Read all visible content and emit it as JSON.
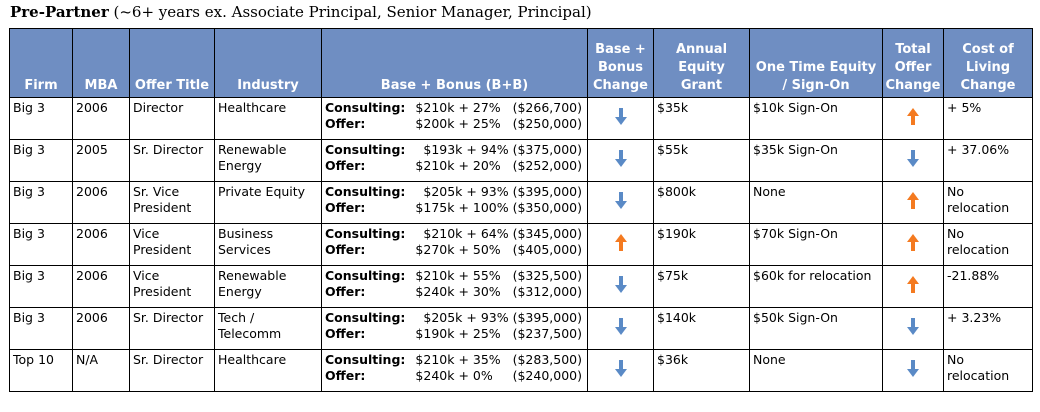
{
  "title": {
    "bold": "Pre-Partner",
    "rest": " (~6+ years ex. Associate Principal, Senior Manager, Principal)"
  },
  "colors": {
    "header_bg": "#6f8ec2",
    "down_arrow": "#5a8ac6",
    "up_arrow": "#f47a20"
  },
  "headers": [
    "Firm",
    "MBA",
    "Offer Title",
    "Industry",
    "Base + Bonus (B+B)",
    "Base + Bonus Change",
    "Annual Equity Grant",
    "One Time Equity / Sign-On",
    "Total Offer Change",
    "Cost of Living Change"
  ],
  "rows": [
    {
      "firm": "Big 3",
      "mba": "2006",
      "title": "Director",
      "industry": "Healthcare",
      "consulting_label": "Consulting:",
      "consulting": "$210k + 27%   ($266,700)",
      "offer_label": "Offer:",
      "offer": "$200k + 25%   ($250,000)",
      "bb_change": "down",
      "equity": "$35k",
      "signon": "$10k Sign-On",
      "total_change": "up",
      "col": "+ 5%"
    },
    {
      "firm": "Big 3",
      "mba": "2005",
      "title": "Sr. Director",
      "industry": "Renewable Energy",
      "consulting_label": "Consulting:",
      "consulting": "$193k + 94% ($375,000)",
      "offer_label": "Offer:",
      "offer": "$210k + 20%   ($252,000)",
      "bb_change": "down",
      "equity": "$55k",
      "signon": "$35k Sign-On",
      "total_change": "down",
      "col": "+ 37.06%"
    },
    {
      "firm": "Big 3",
      "mba": "2006",
      "title": "Sr. Vice President",
      "industry": "Private Equity",
      "consulting_label": "Consulting:",
      "consulting": "$205k + 93% ($395,000)",
      "offer_label": "Offer:",
      "offer": "$175k + 100% ($350,000)",
      "bb_change": "down",
      "equity": "$800k",
      "signon": "None",
      "total_change": "up",
      "col": "No relocation"
    },
    {
      "firm": "Big 3",
      "mba": "2006",
      "title": "Vice President",
      "industry": "Business Services",
      "consulting_label": "Consulting:",
      "consulting": "$210k + 64% ($345,000)",
      "offer_label": "Offer:",
      "offer": "$270k + 50%   ($405,000)",
      "bb_change": "up",
      "equity": "$190k",
      "signon": "$70k Sign-On",
      "total_change": "up",
      "col": "No relocation"
    },
    {
      "firm": "Big 3",
      "mba": "2006",
      "title": "Vice President",
      "industry": "Renewable Energy",
      "consulting_label": "Consulting:",
      "consulting": "$210k + 55%   ($325,500)",
      "offer_label": "Offer:",
      "offer": "$240k + 30%   ($312,000)",
      "bb_change": "down",
      "equity": "$75k",
      "signon": "$60k for relocation",
      "total_change": "up",
      "col": "-21.88%"
    },
    {
      "firm": "Big 3",
      "mba": "2006",
      "title": "Sr. Director",
      "industry": "Tech / Telecomm",
      "consulting_label": "Consulting:",
      "consulting": "$205k + 93% ($395,000)",
      "offer_label": "Offer:",
      "offer": "$190k + 25%   ($237,500)",
      "bb_change": "down",
      "equity": "$140k",
      "signon": "$50k Sign-On",
      "total_change": "down",
      "col": "+ 3.23%"
    },
    {
      "firm": "Top 10",
      "mba": "N/A",
      "title": "Sr. Director",
      "industry": "Healthcare",
      "consulting_label": "Consulting:",
      "consulting": "$210k + 35%   ($283,500)",
      "offer_label": "Offer:",
      "offer": "$240k + 0%     ($240,000)",
      "bb_change": "down",
      "equity": "$36k",
      "signon": "None",
      "total_change": "down",
      "col": "No relocation"
    }
  ]
}
